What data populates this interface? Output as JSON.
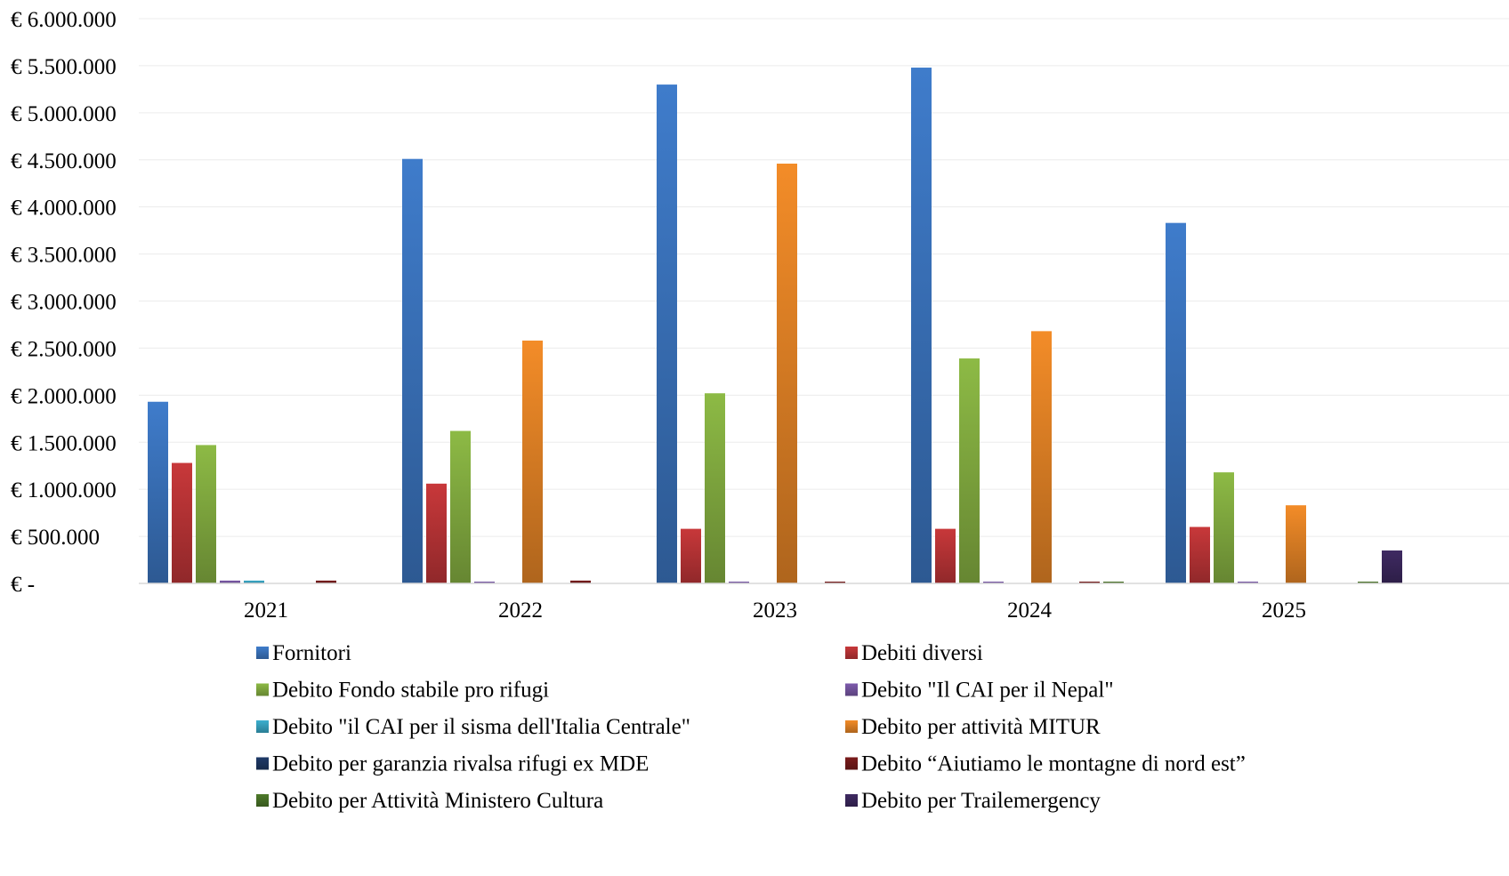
{
  "chart_data": {
    "type": "bar",
    "title": "",
    "xlabel": "",
    "ylabel": "",
    "ylim": [
      0,
      6000000
    ],
    "grid": true,
    "legend_position": "bottom",
    "y_ticks": [
      {
        "value": 0,
        "label": "€ -"
      },
      {
        "value": 500000,
        "label": "€ 500.000"
      },
      {
        "value": 1000000,
        "label": "€ 1.000.000"
      },
      {
        "value": 1500000,
        "label": "€ 1.500.000"
      },
      {
        "value": 2000000,
        "label": "€ 2.000.000"
      },
      {
        "value": 2500000,
        "label": "€ 2.500.000"
      },
      {
        "value": 3000000,
        "label": "€ 3.000.000"
      },
      {
        "value": 3500000,
        "label": "€ 3.500.000"
      },
      {
        "value": 4000000,
        "label": "€ 4.000.000"
      },
      {
        "value": 4500000,
        "label": "€ 4.500.000"
      },
      {
        "value": 5000000,
        "label": "€ 5.000.000"
      },
      {
        "value": 5500000,
        "label": "€ 5.500.000"
      },
      {
        "value": 6000000,
        "label": "€ 6.000.000"
      }
    ],
    "categories": [
      "2021",
      "2022",
      "2023",
      "2024",
      "2025"
    ],
    "series": [
      {
        "name": "Fornitori",
        "color": "#3F7CCB",
        "values": [
          1930000,
          4510000,
          5300000,
          5480000,
          3830000
        ]
      },
      {
        "name": "Debiti diversi",
        "color": "#C8383A",
        "values": [
          1280000,
          1060000,
          580000,
          580000,
          600000
        ]
      },
      {
        "name": "Debito Fondo stabile pro rifugi",
        "color": "#8DBA45",
        "values": [
          1470000,
          1620000,
          2020000,
          2390000,
          1180000
        ]
      },
      {
        "name": "Debito \"Il CAI per il Nepal\"",
        "color": "#7E5CAD",
        "values": [
          30000,
          10000,
          10000,
          10000,
          10000
        ]
      },
      {
        "name": "Debito \"il CAI per il sisma dell'Italia Centrale\"",
        "color": "#3BAFCF",
        "values": [
          30000,
          0,
          0,
          0,
          0
        ]
      },
      {
        "name": "Debito per attività MITUR",
        "color": "#F38C28",
        "values": [
          0,
          2580000,
          4460000,
          2680000,
          830000
        ]
      },
      {
        "name": "Debito per garanzia rivalsa rifugi ex MDE",
        "color": "#1F3A68",
        "values": [
          0,
          0,
          0,
          0,
          0
        ]
      },
      {
        "name": "Debito “Aiutiamo le montagne di nord est”",
        "color": "#7B1C1C",
        "values": [
          30000,
          30000,
          10000,
          10000,
          0
        ]
      },
      {
        "name": "Debito per Attività Ministero Cultura",
        "color": "#4E7A2A",
        "values": [
          0,
          0,
          0,
          10000,
          10000
        ]
      },
      {
        "name": "Debito per Trailemergency",
        "color": "#3F2A62",
        "values": [
          0,
          0,
          0,
          0,
          350000
        ]
      }
    ]
  }
}
